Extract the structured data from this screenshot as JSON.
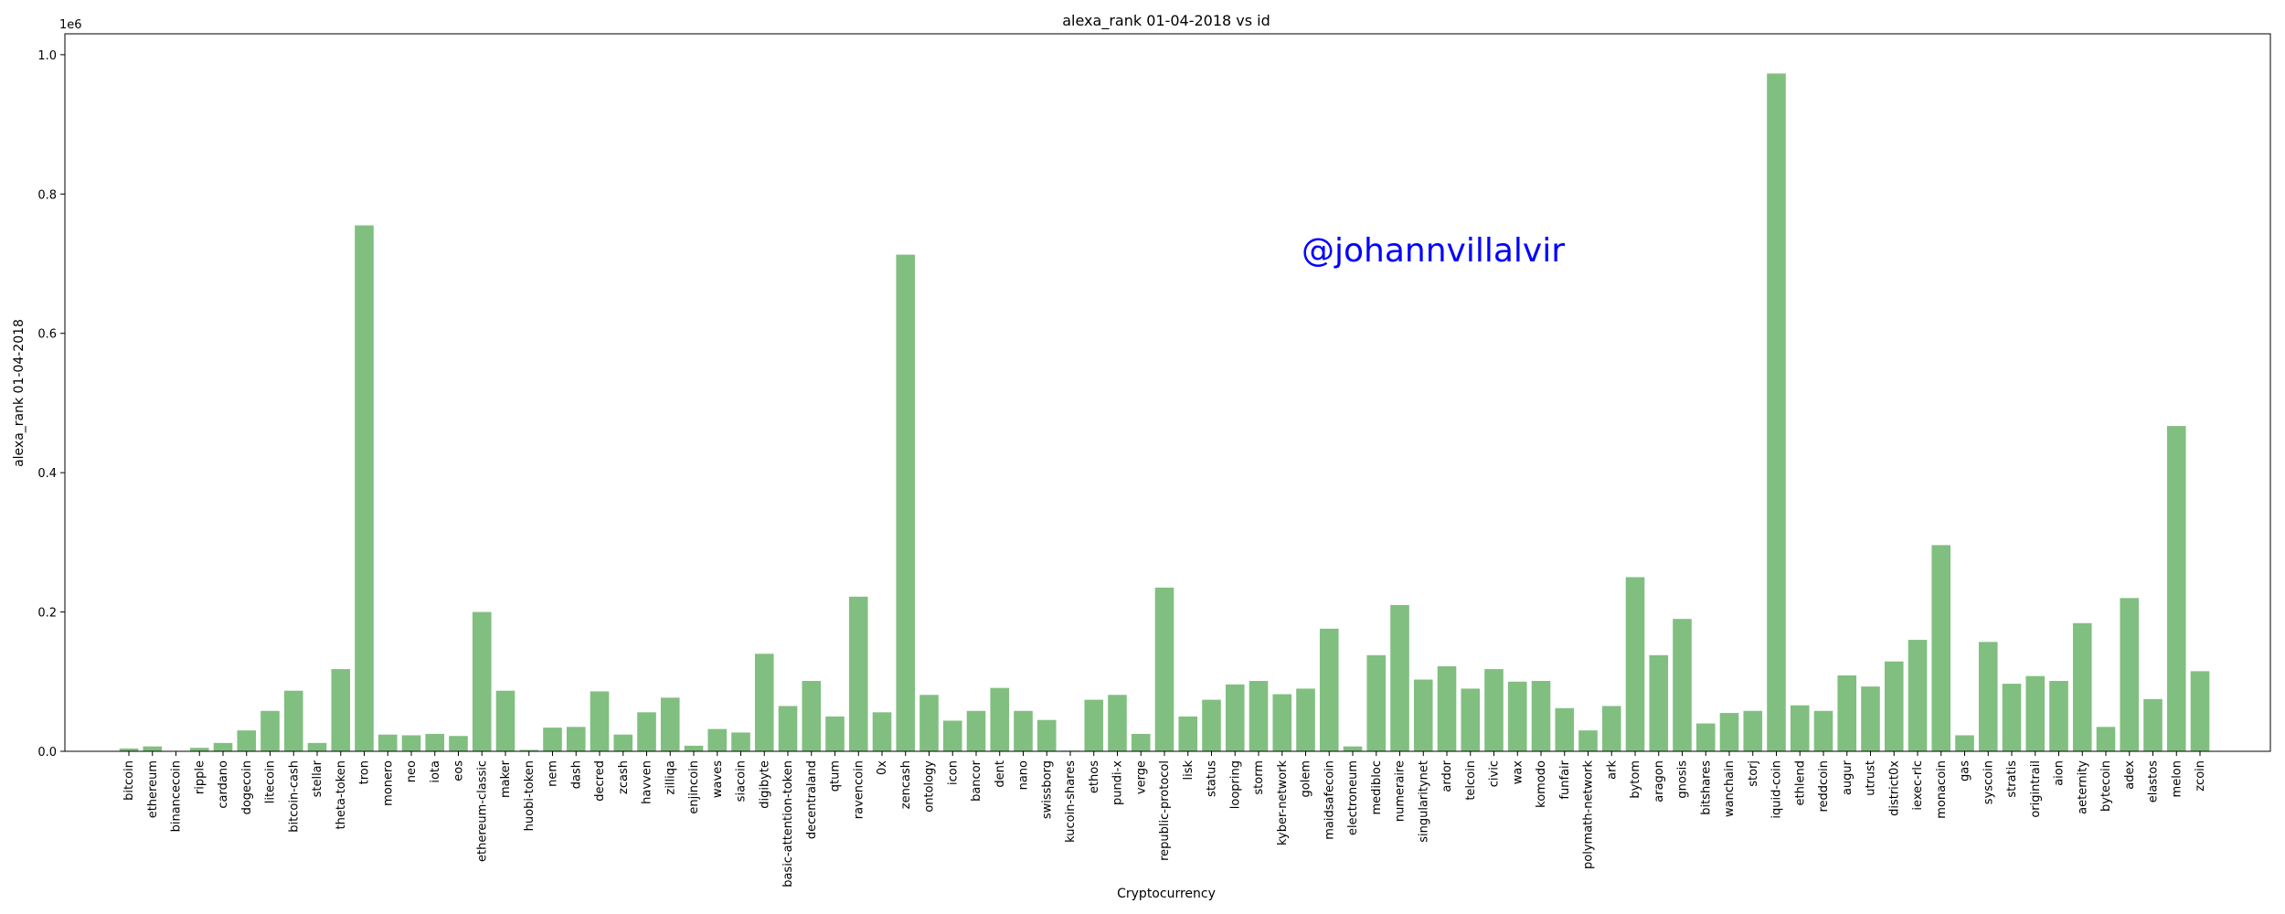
{
  "chart_data": {
    "type": "bar",
    "title": "alexa_rank 01-04-2018 vs id",
    "xlabel": "Cryptocurrency",
    "ylabel": "alexa_rank 01-04-2018",
    "y_scale_label": "1e6",
    "ylim": [
      0,
      1030000
    ],
    "yticks": [
      0,
      200000,
      400000,
      600000,
      800000,
      1000000
    ],
    "ytick_labels": [
      "0.0",
      "0.2",
      "0.4",
      "0.6",
      "0.8",
      "1.0"
    ],
    "grid": false,
    "bar_color": "#80bf80",
    "watermark": {
      "text": "@johannvillalvir",
      "color": "#0000ff"
    },
    "categories": [
      "bitcoin",
      "ethereum",
      "binancecoin",
      "ripple",
      "cardano",
      "dogecoin",
      "litecoin",
      "bitcoin-cash",
      "stellar",
      "theta-token",
      "tron",
      "monero",
      "neo",
      "iota",
      "eos",
      "ethereum-classic",
      "maker",
      "huobi-token",
      "nem",
      "dash",
      "decred",
      "zcash",
      "havven",
      "zilliqa",
      "enjincoin",
      "waves",
      "siacoin",
      "digibyte",
      "basic-attention-token",
      "decentraland",
      "qtum",
      "ravencoin",
      "0x",
      "zencash",
      "ontology",
      "icon",
      "bancor",
      "dent",
      "nano",
      "swissborg",
      "kucoin-shares",
      "ethos",
      "pundi-x",
      "verge",
      "republic-protocol",
      "lisk",
      "status",
      "loopring",
      "storm",
      "kyber-network",
      "golem",
      "maidsafecoin",
      "electroneum",
      "medibloc",
      "numeraire",
      "singularitynet",
      "ardor",
      "telcoin",
      "civic",
      "wax",
      "komodo",
      "funfair",
      "polymath-network",
      "ark",
      "bytom",
      "aragon",
      "gnosis",
      "bitshares",
      "wanchain",
      "storj",
      "iquid-coin",
      "ethlend",
      "reddcoin",
      "augur",
      "utrust",
      "district0x",
      "iexec-rlc",
      "monacoin",
      "gas",
      "syscoin",
      "stratis",
      "origintrail",
      "aion",
      "aeternity",
      "bytecoin",
      "adex",
      "elastos",
      "melon",
      "zcoin"
    ],
    "values": [
      4000,
      7000,
      500,
      5000,
      12000,
      30000,
      58000,
      87000,
      12000,
      118000,
      755000,
      24000,
      23000,
      25000,
      22000,
      200000,
      87000,
      2000,
      34000,
      35000,
      86000,
      24000,
      56000,
      77000,
      8000,
      32000,
      27000,
      140000,
      65000,
      101000,
      50000,
      222000,
      56000,
      713000,
      81000,
      44000,
      58000,
      91000,
      58000,
      45000,
      1000,
      74000,
      81000,
      25000,
      235000,
      50000,
      74000,
      96000,
      101000,
      82000,
      90000,
      176000,
      7000,
      138000,
      210000,
      103000,
      122000,
      90000,
      118000,
      100000,
      101000,
      62000,
      30000,
      65000,
      250000,
      138000,
      190000,
      40000,
      55000,
      58000,
      973000,
      66000,
      58000,
      109000,
      93000,
      129000,
      160000,
      296000,
      23000,
      157000,
      97000,
      108000,
      101000,
      184000,
      35000,
      220000,
      75000,
      467000,
      115000
    ]
  }
}
